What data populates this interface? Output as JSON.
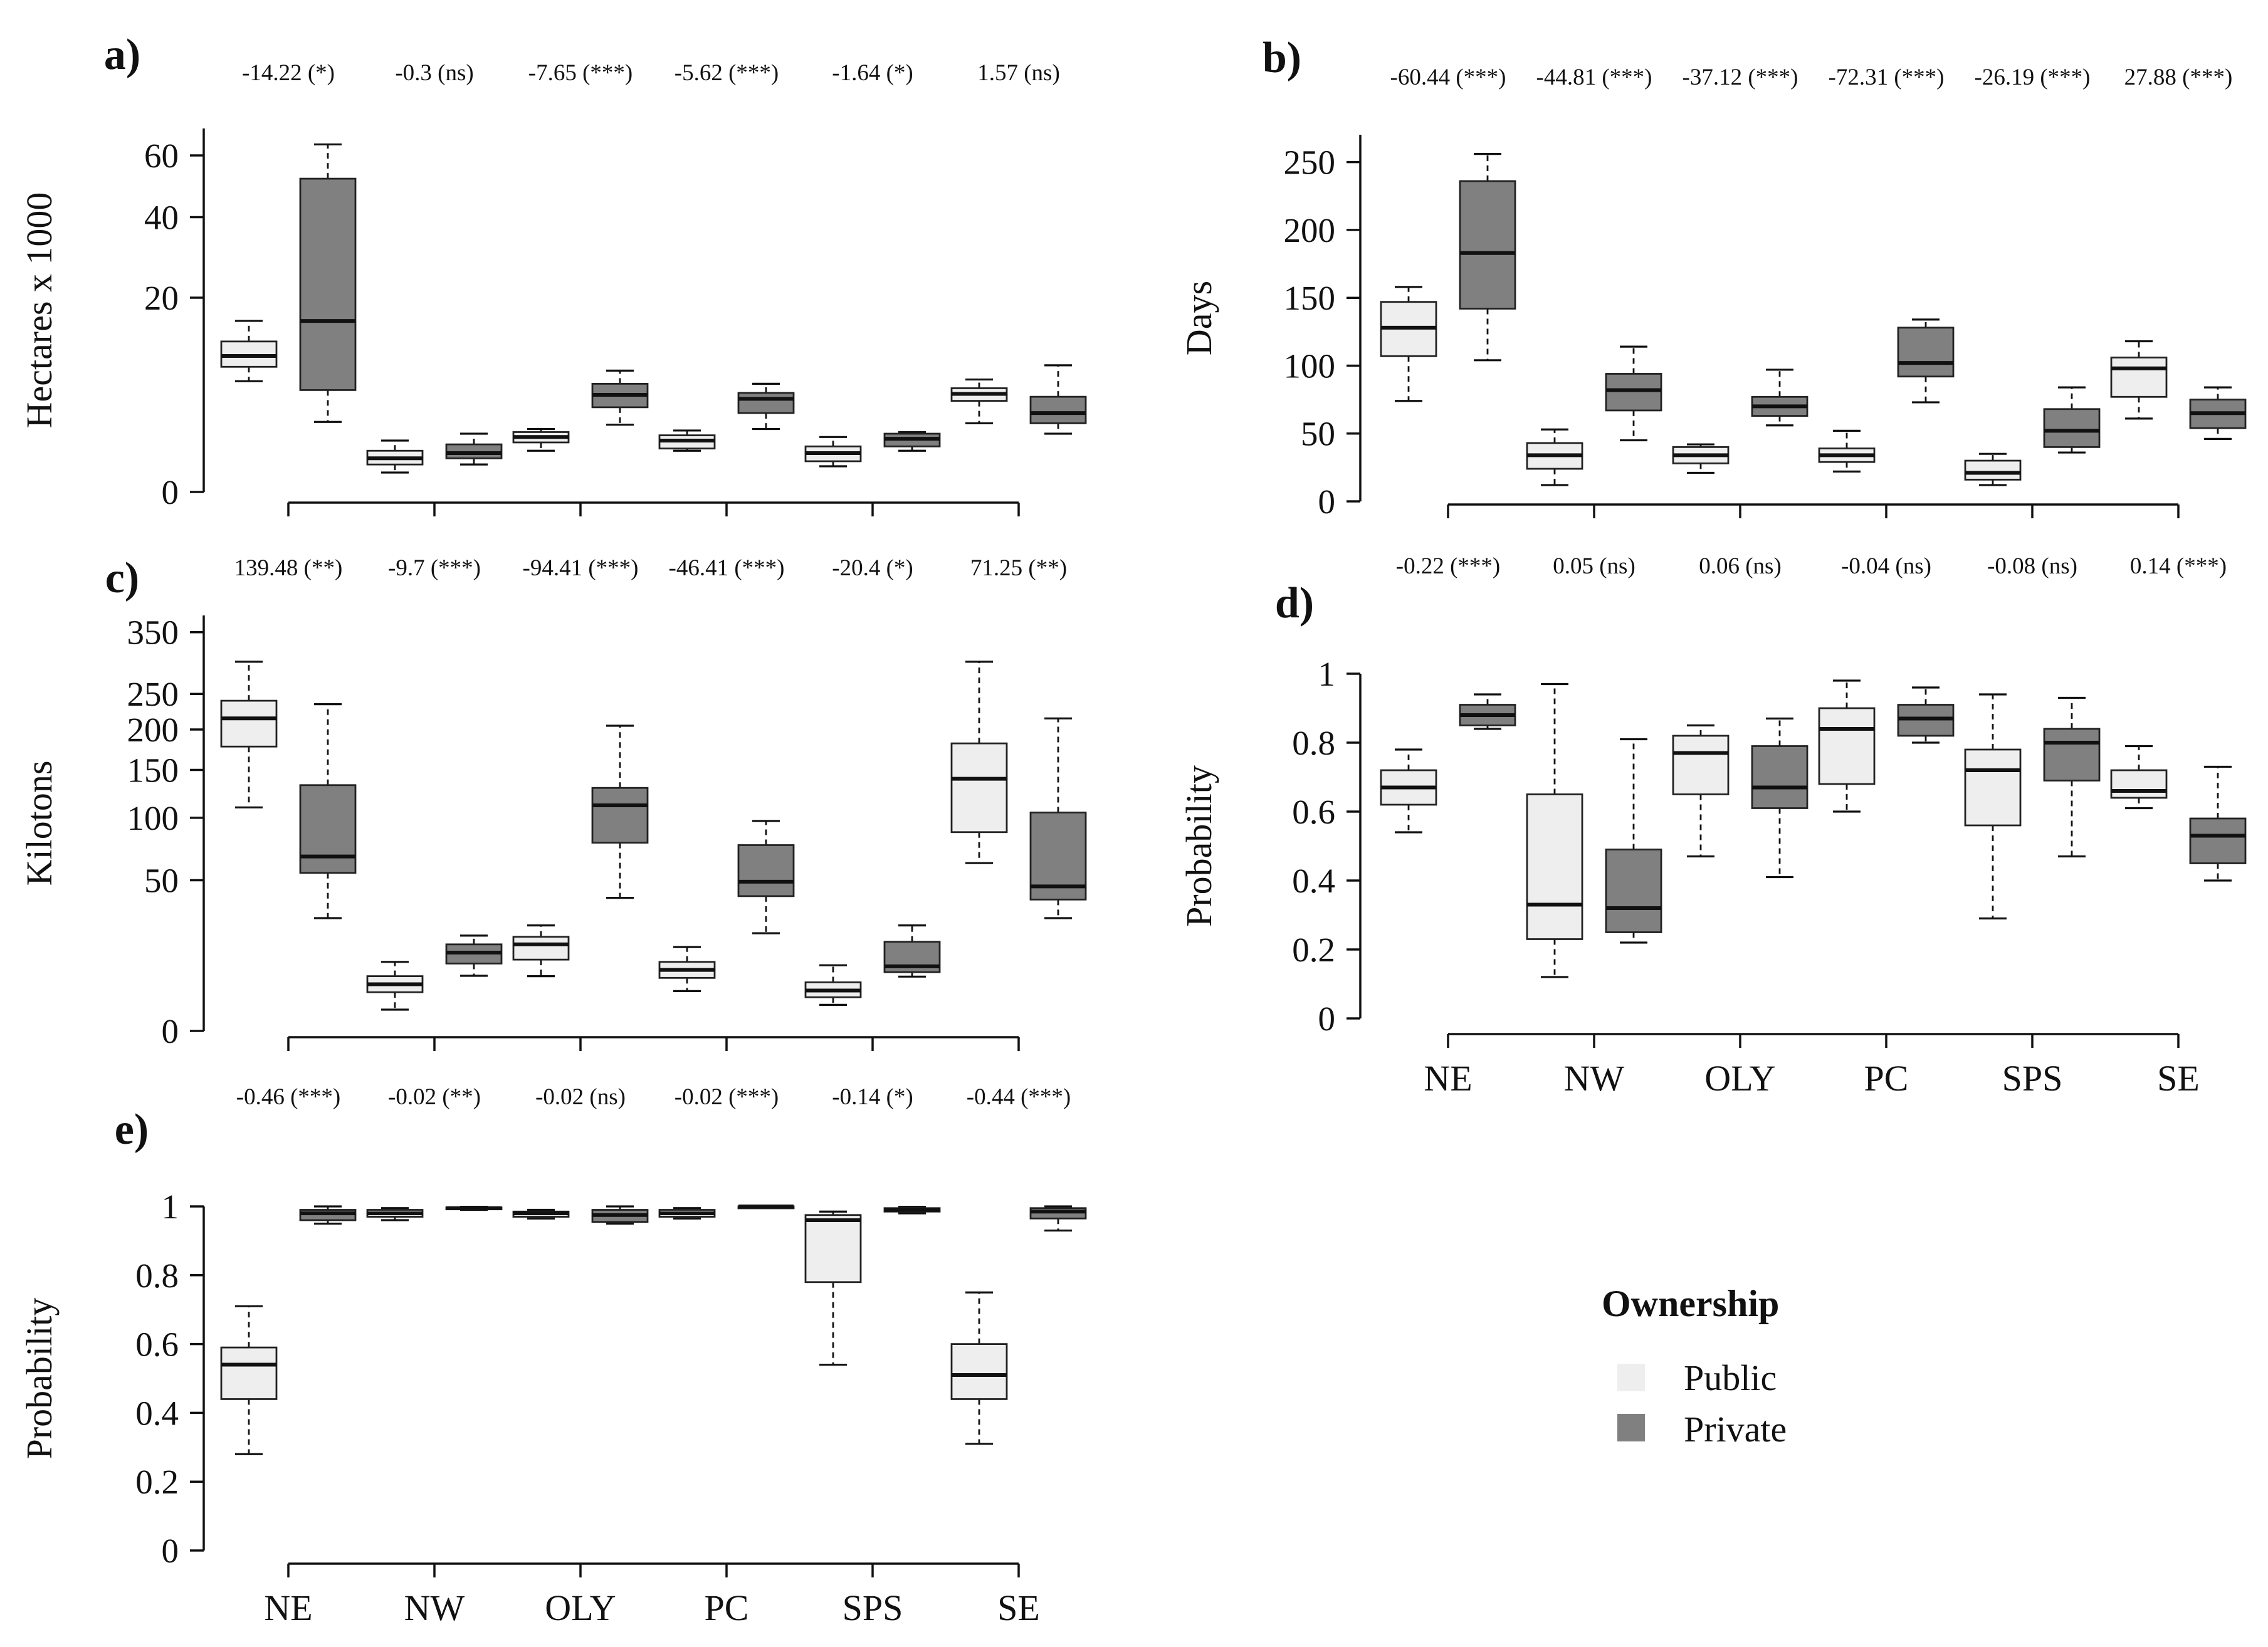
{
  "chart_data": {
    "type": "boxplot",
    "groups": [
      "Public",
      "Private"
    ],
    "colors": {
      "Public": "#eeeeee",
      "Private": "#808080"
    },
    "legend": {
      "title": "Ownership",
      "items": [
        "Public",
        "Private"
      ]
    },
    "categories": [
      "NE",
      "NW",
      "OLY",
      "PC",
      "SPS",
      "SE"
    ],
    "panels": [
      {
        "id": "a",
        "label": "a)",
        "ylabel": "Hectares x 1000",
        "scale": "sqrt",
        "ylim": [
          0,
          70
        ],
        "yticks": [
          0,
          20,
          40,
          60
        ],
        "ytick_labels": [
          "0",
          "20",
          "40",
          "60"
        ],
        "show_xlabels": false,
        "stats": [
          "-14.22 (*)",
          "-0.3 (ns)",
          "-7.65 (***)",
          "-5.62 (***)",
          "-1.64 (*)",
          "1.57 (ns)"
        ],
        "boxes": [
          {
            "cat": "NE",
            "Public": [
              6.5,
              8.3,
              9.8,
              12.0,
              15.5
            ],
            "Private": [
              2.6,
              5.5,
              15.5,
              52.0,
              64.0
            ]
          },
          {
            "cat": "NW",
            "Public": [
              0.2,
              0.4,
              0.6,
              0.9,
              1.4
            ],
            "Private": [
              0.4,
              0.6,
              0.8,
              1.2,
              1.8
            ]
          },
          {
            "cat": "OLY",
            "Public": [
              0.9,
              1.3,
              1.6,
              1.9,
              2.1
            ],
            "Private": [
              2.4,
              3.8,
              5.0,
              6.2,
              7.8
            ]
          },
          {
            "cat": "PC",
            "Public": [
              0.9,
              1.0,
              1.4,
              1.7,
              2.0
            ],
            "Private": [
              2.1,
              3.3,
              4.6,
              5.2,
              6.2
            ]
          },
          {
            "cat": "SPS",
            "Public": [
              0.35,
              0.5,
              0.8,
              1.1,
              1.6
            ],
            "Private": [
              0.9,
              1.1,
              1.5,
              1.8,
              1.9
            ]
          },
          {
            "cat": "SE",
            "Public": [
              2.5,
              4.4,
              5.1,
              5.7,
              6.7
            ],
            "Private": [
              1.8,
              2.5,
              3.3,
              4.8,
              8.5
            ]
          }
        ]
      },
      {
        "id": "b",
        "label": "b)",
        "ylabel": "Days",
        "scale": "linear",
        "ylim": [
          0,
          260
        ],
        "yticks": [
          0,
          50,
          100,
          150,
          200,
          250
        ],
        "ytick_labels": [
          "0",
          "50",
          "100",
          "150",
          "200",
          "250"
        ],
        "show_xlabels": false,
        "stats": [
          "-60.44 (***)",
          "-44.81 (***)",
          "-37.12 (***)",
          "-72.31 (***)",
          "-26.19 (***)",
          "27.88 (***)"
        ],
        "boxes": [
          {
            "cat": "NE",
            "Public": [
              74,
              107,
              128,
              147,
              158
            ],
            "Private": [
              104,
              142,
              183,
              236,
              256
            ]
          },
          {
            "cat": "NW",
            "Public": [
              12,
              24,
              34,
              43,
              53
            ],
            "Private": [
              45,
              67,
              82,
              94,
              114
            ]
          },
          {
            "cat": "OLY",
            "Public": [
              21,
              28,
              34,
              40,
              42
            ],
            "Private": [
              56,
              63,
              70,
              77,
              97
            ]
          },
          {
            "cat": "PC",
            "Public": [
              22,
              29,
              34,
              39,
              52
            ],
            "Private": [
              73,
              92,
              102,
              128,
              134
            ]
          },
          {
            "cat": "SPS",
            "Public": [
              12,
              16,
              21,
              30,
              35
            ],
            "Private": [
              36,
              40,
              52,
              68,
              84
            ]
          },
          {
            "cat": "SE",
            "Public": [
              61,
              77,
              98,
              106,
              118
            ],
            "Private": [
              46,
              54,
              65,
              75,
              84
            ]
          }
        ]
      },
      {
        "id": "c",
        "label": "c)",
        "ylabel": "Kilotons",
        "scale": "sqrt",
        "ylim": [
          0,
          380
        ],
        "yticks": [
          0,
          50,
          100,
          150,
          200,
          250,
          350
        ],
        "ytick_labels": [
          "0",
          "50",
          "100",
          "150",
          "200",
          "250",
          "350"
        ],
        "show_xlabels": false,
        "stats": [
          "139.48 (**)",
          "-9.7 (***)",
          "-94.41 (***)",
          "-46.41 (***)",
          "-20.4 (*)",
          "71.25 (**)"
        ],
        "boxes": [
          {
            "cat": "NE",
            "Public": [
              110,
              178,
              215,
              240,
              300
            ],
            "Private": [
              28,
              55,
              67,
              133,
              235
            ]
          },
          {
            "cat": "NW",
            "Public": [
              1,
              3.3,
              4.8,
              6.6,
              10.5
            ],
            "Private": [
              6.7,
              10,
              13.5,
              16.5,
              20
            ]
          },
          {
            "cat": "OLY",
            "Public": [
              6.6,
              11.2,
              16.5,
              19.5,
              24.5
            ],
            "Private": [
              39,
              78,
              112,
              130,
              205
            ]
          },
          {
            "cat": "PC",
            "Public": [
              3.5,
              6.2,
              8.2,
              10.5,
              15.5
            ],
            "Private": [
              21,
              40,
              49,
              76,
              97
            ]
          },
          {
            "cat": "SPS",
            "Public": [
              1.5,
              2.5,
              3.6,
              5.2,
              9.5
            ],
            "Private": [
              6.5,
              7.6,
              9.2,
              17.5,
              24.5
            ]
          },
          {
            "cat": "SE",
            "Public": [
              62,
              87,
              140,
              182,
              300
            ],
            "Private": [
              28,
              38,
              46,
              105,
              215
            ]
          }
        ]
      },
      {
        "id": "d",
        "label": "d)",
        "ylabel": "Probability",
        "scale": "linear",
        "ylim": [
          0,
          1
        ],
        "yticks": [
          0,
          0.2,
          0.4,
          0.6,
          0.8,
          1
        ],
        "ytick_labels": [
          "0",
          "0.2",
          "0.4",
          "0.6",
          "0.8",
          "1"
        ],
        "show_xlabels": true,
        "stats": [
          "-0.22 (***)",
          "0.05 (ns)",
          "0.06 (ns)",
          "-0.04 (ns)",
          "-0.08 (ns)",
          "0.14 (***)"
        ],
        "boxes": [
          {
            "cat": "NE",
            "Public": [
              0.54,
              0.62,
              0.67,
              0.72,
              0.78
            ],
            "Private": [
              0.84,
              0.85,
              0.88,
              0.91,
              0.94
            ]
          },
          {
            "cat": "NW",
            "Public": [
              0.12,
              0.23,
              0.33,
              0.65,
              0.97
            ],
            "Private": [
              0.22,
              0.25,
              0.32,
              0.49,
              0.81
            ]
          },
          {
            "cat": "OLY",
            "Public": [
              0.47,
              0.65,
              0.77,
              0.82,
              0.85
            ],
            "Private": [
              0.41,
              0.61,
              0.67,
              0.79,
              0.87
            ]
          },
          {
            "cat": "PC",
            "Public": [
              0.6,
              0.68,
              0.84,
              0.9,
              0.98
            ],
            "Private": [
              0.8,
              0.82,
              0.87,
              0.91,
              0.96
            ]
          },
          {
            "cat": "SPS",
            "Public": [
              0.29,
              0.56,
              0.72,
              0.78,
              0.94
            ],
            "Private": [
              0.47,
              0.69,
              0.8,
              0.84,
              0.93
            ]
          },
          {
            "cat": "SE",
            "Public": [
              0.61,
              0.64,
              0.66,
              0.72,
              0.79
            ],
            "Private": [
              0.4,
              0.45,
              0.53,
              0.58,
              0.73
            ]
          }
        ]
      },
      {
        "id": "e",
        "label": "e)",
        "ylabel": "Probability",
        "scale": "linear",
        "ylim": [
          0,
          1
        ],
        "yticks": [
          0,
          0.2,
          0.4,
          0.6,
          0.8,
          1
        ],
        "ytick_labels": [
          "0",
          "0.2",
          "0.4",
          "0.6",
          "0.8",
          "1"
        ],
        "show_xlabels": true,
        "stats": [
          "-0.46 (***)",
          "-0.02 (**)",
          "-0.02 (ns)",
          "-0.02 (***)",
          "-0.14 (*)",
          "-0.44 (***)"
        ],
        "boxes": [
          {
            "cat": "NE",
            "Public": [
              0.28,
              0.44,
              0.54,
              0.59,
              0.71
            ],
            "Private": [
              0.95,
              0.96,
              0.98,
              0.99,
              1.0
            ]
          },
          {
            "cat": "NW",
            "Public": [
              0.96,
              0.97,
              0.98,
              0.99,
              0.995
            ],
            "Private": [
              0.99,
              0.993,
              0.995,
              0.997,
              0.999
            ]
          },
          {
            "cat": "OLY",
            "Public": [
              0.965,
              0.97,
              0.98,
              0.985,
              0.99
            ],
            "Private": [
              0.95,
              0.955,
              0.975,
              0.99,
              1.0
            ]
          },
          {
            "cat": "PC",
            "Public": [
              0.965,
              0.97,
              0.98,
              0.99,
              0.995
            ],
            "Private": [
              0.998,
              0.999,
              1.0,
              1.0,
              1.0
            ]
          },
          {
            "cat": "SPS",
            "Public": [
              0.54,
              0.78,
              0.96,
              0.975,
              0.985
            ],
            "Private": [
              0.98,
              0.985,
              0.99,
              0.995,
              0.999
            ]
          },
          {
            "cat": "SE",
            "Public": [
              0.31,
              0.44,
              0.51,
              0.6,
              0.75
            ],
            "Private": [
              0.93,
              0.965,
              0.985,
              0.995,
              1.0
            ]
          }
        ]
      }
    ]
  }
}
